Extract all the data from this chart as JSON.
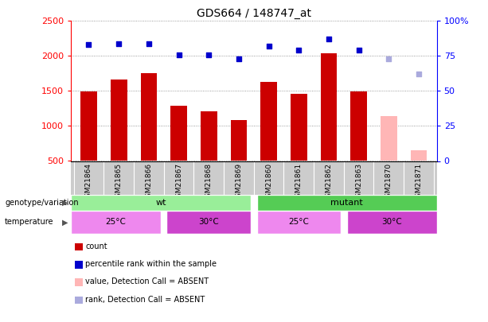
{
  "title": "GDS664 / 148747_at",
  "samples": [
    "GSM21864",
    "GSM21865",
    "GSM21866",
    "GSM21867",
    "GSM21868",
    "GSM21869",
    "GSM21860",
    "GSM21861",
    "GSM21862",
    "GSM21863",
    "GSM21870",
    "GSM21871"
  ],
  "counts": [
    1490,
    1660,
    1750,
    1290,
    1210,
    1080,
    1630,
    1460,
    2040,
    1490,
    null,
    null
  ],
  "ranks": [
    83,
    84,
    84,
    76,
    76,
    73,
    82,
    79,
    87,
    79,
    null,
    null
  ],
  "absent_counts": [
    null,
    null,
    null,
    null,
    null,
    null,
    null,
    null,
    null,
    null,
    1140,
    650
  ],
  "absent_ranks": [
    null,
    null,
    null,
    null,
    null,
    null,
    null,
    null,
    null,
    null,
    73,
    62
  ],
  "ylim_left": [
    500,
    2500
  ],
  "ylim_right": [
    0,
    100
  ],
  "yticks_left": [
    500,
    1000,
    1500,
    2000,
    2500
  ],
  "yticks_right": [
    0,
    25,
    50,
    75,
    100
  ],
  "bar_color": "#cc0000",
  "bar_absent_color": "#ffb6b6",
  "dot_color": "#0000cc",
  "dot_absent_color": "#aaaadd",
  "background_color": "#ffffff",
  "label_bg_color": "#cccccc",
  "genotype_wt_color": "#99ee99",
  "genotype_mutant_color": "#55cc55",
  "temp_25_color": "#ee88ee",
  "temp_30_color": "#cc44cc"
}
